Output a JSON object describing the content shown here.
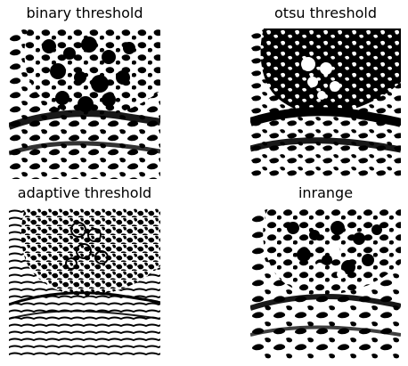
{
  "figure": {
    "panels": [
      {
        "title": "binary threshold"
      },
      {
        "title": "otsu threshold"
      },
      {
        "title": "adaptive threshold"
      },
      {
        "title": "inrange"
      }
    ]
  },
  "colors": {
    "foreground": "#000000",
    "background": "#ffffff"
  }
}
